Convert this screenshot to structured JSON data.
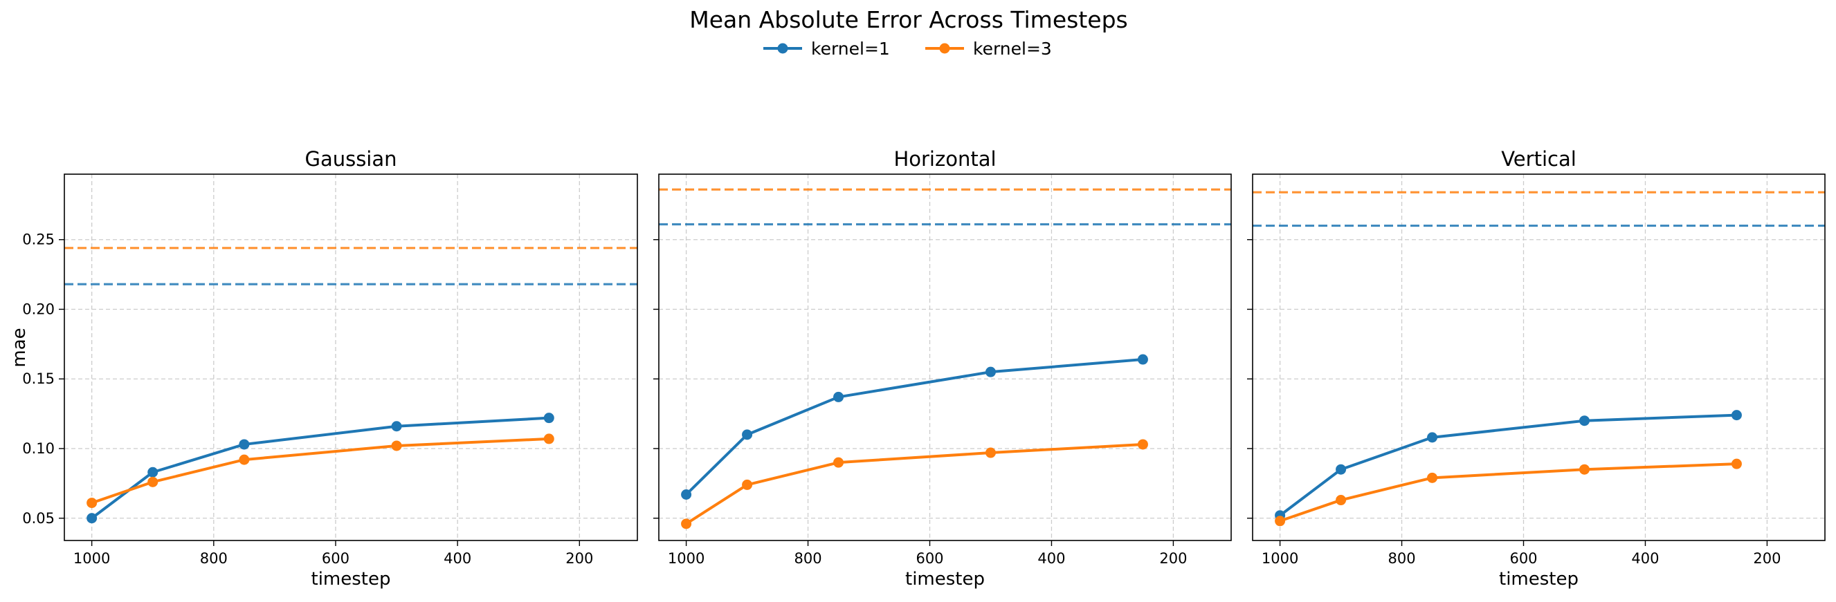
{
  "chart_data": {
    "type": "line",
    "title": "Mean Absolute Error Across Timesteps",
    "ylabel": "mae",
    "xlabel": "timestep",
    "xlim": [
      1045,
      105
    ],
    "ylim": [
      0.034,
      0.297
    ],
    "xticks": [
      1000,
      800,
      600,
      400,
      200
    ],
    "yticks": [
      0.05,
      0.1,
      0.15,
      0.2,
      0.25
    ],
    "x_inverted": true,
    "grid": true,
    "legend": {
      "placement": "top-center",
      "entries": [
        "kernel=1",
        "kernel=3"
      ]
    },
    "colors": {
      "kernel=1": "#1f77b4",
      "kernel=3": "#ff7f0e"
    },
    "x": [
      1000,
      900,
      750,
      500,
      250
    ],
    "panels": [
      {
        "title": "Gaussian",
        "series": [
          {
            "name": "kernel=1",
            "values": [
              0.05,
              0.083,
              0.103,
              0.116,
              0.122
            ],
            "baseline": 0.218
          },
          {
            "name": "kernel=3",
            "values": [
              0.061,
              0.076,
              0.092,
              0.102,
              0.107
            ],
            "baseline": 0.244
          }
        ]
      },
      {
        "title": "Horizontal",
        "series": [
          {
            "name": "kernel=1",
            "values": [
              0.067,
              0.11,
              0.137,
              0.155,
              0.164
            ],
            "baseline": 0.261
          },
          {
            "name": "kernel=3",
            "values": [
              0.046,
              0.074,
              0.09,
              0.097,
              0.103
            ],
            "baseline": 0.286
          }
        ]
      },
      {
        "title": "Vertical",
        "series": [
          {
            "name": "kernel=1",
            "values": [
              0.052,
              0.085,
              0.108,
              0.12,
              0.124
            ],
            "baseline": 0.26
          },
          {
            "name": "kernel=3",
            "values": [
              0.048,
              0.063,
              0.079,
              0.085,
              0.089
            ],
            "baseline": 0.284
          }
        ]
      }
    ]
  }
}
